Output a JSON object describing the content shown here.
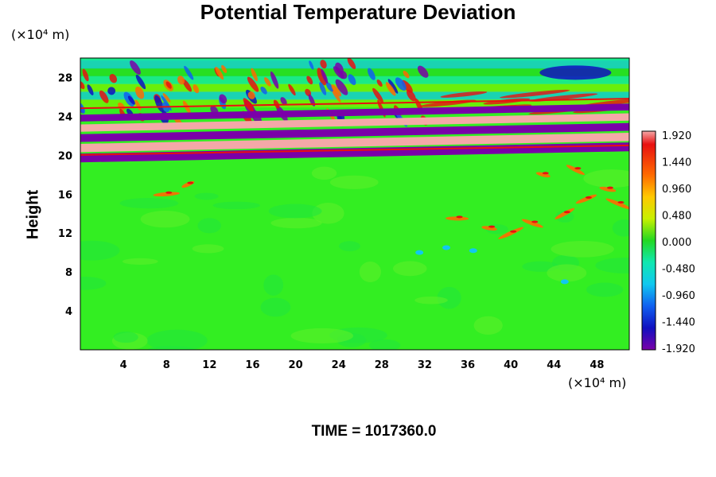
{
  "chart_data": {
    "type": "heatmap",
    "title": "Potential Temperature Deviation",
    "ylabel": "Height",
    "xlabel": "",
    "x_unit": "(×10⁴ m)",
    "y_unit": "(×10⁴ m)",
    "xlim": [
      0,
      51
    ],
    "ylim": [
      0,
      30
    ],
    "x_ticks": [
      "4",
      "8",
      "12",
      "16",
      "20",
      "24",
      "28",
      "32",
      "36",
      "40",
      "44",
      "48"
    ],
    "y_ticks": [
      "4",
      "8",
      "12",
      "16",
      "20",
      "24",
      "28"
    ],
    "colorbar": {
      "range": [
        -1.92,
        1.92
      ],
      "labels": [
        "1.920",
        "1.440",
        "0.960",
        "0.480",
        "0.000",
        "-0.480",
        "-0.960",
        "-1.440",
        "-1.920"
      ]
    },
    "features": {
      "background_value": 0.0,
      "wave_layer_bottom": 20,
      "wave_layer_top": 30,
      "strong_bands_y": [
        20.5,
        21.5,
        22.5,
        23.5,
        24.5
      ],
      "disturbance_x_range": [
        32,
        50
      ],
      "disturbance_y": [
        10,
        18
      ]
    },
    "grid": false,
    "legend": "right"
  },
  "footer": {
    "time_text": "TIME = 1017360.0"
  },
  "colors": {
    "background_field": "#33ee22",
    "max": "#f4a8a8",
    "min": "#7a00a8"
  }
}
